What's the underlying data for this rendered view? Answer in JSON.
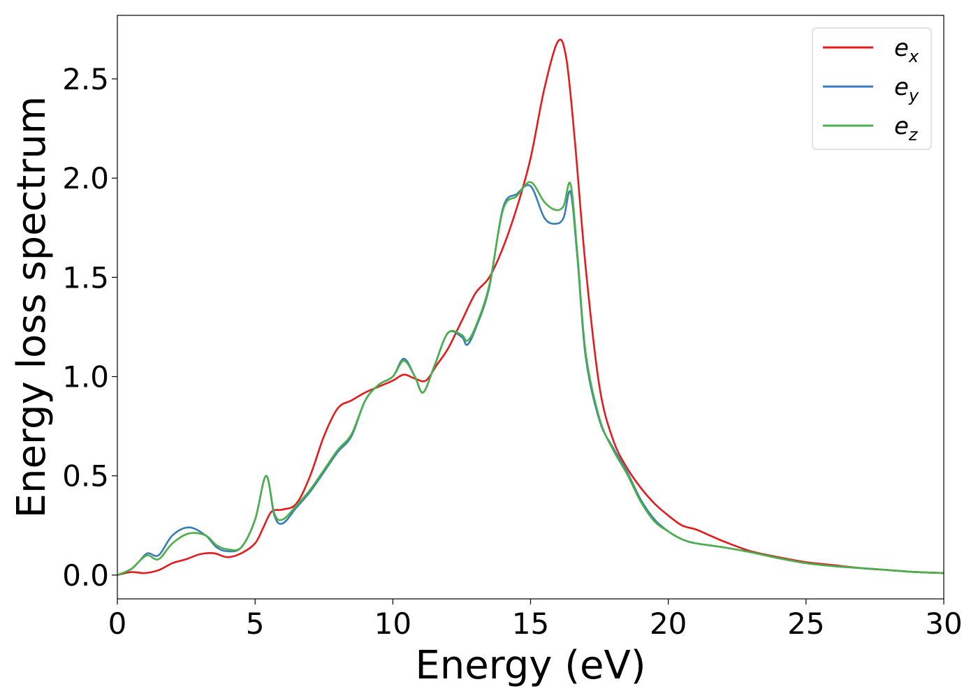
{
  "chart_data": {
    "type": "line",
    "title": "",
    "xlabel": "Energy (eV)",
    "ylabel": "Energy loss spectrum",
    "xlim": [
      0,
      30
    ],
    "ylim": [
      -0.12,
      2.82
    ],
    "xticks": [
      0,
      5,
      10,
      15,
      20,
      25,
      30
    ],
    "yticks": [
      0.0,
      0.5,
      1.0,
      1.5,
      2.0,
      2.5
    ],
    "xtick_labels": [
      "0",
      "5",
      "10",
      "15",
      "20",
      "25",
      "30"
    ],
    "ytick_labels": [
      "0.0",
      "0.5",
      "1.0",
      "1.5",
      "2.0",
      "2.5"
    ],
    "grid": false,
    "legend": "top-right",
    "series": [
      {
        "name": "e_x",
        "label_base": "e",
        "label_sub": "x",
        "color": "#e41a1c",
        "x": [
          0,
          0.5,
          1.0,
          1.5,
          2.0,
          2.5,
          3.0,
          3.5,
          4.0,
          4.5,
          5.0,
          5.3,
          5.6,
          6.0,
          6.5,
          7.0,
          7.5,
          8.0,
          8.5,
          9.0,
          9.5,
          10.0,
          10.4,
          10.8,
          11.2,
          11.6,
          12.0,
          12.5,
          13.0,
          13.5,
          14.0,
          14.5,
          15.0,
          15.5,
          16.0,
          16.3,
          16.6,
          17.0,
          17.5,
          18.0,
          18.5,
          19.0,
          19.5,
          20.0,
          20.5,
          21.0,
          21.5,
          22.0,
          23.0,
          24.0,
          25.0,
          26.0,
          27.0,
          28.0,
          29.0,
          30.0
        ],
        "y": [
          0.0,
          0.015,
          0.01,
          0.025,
          0.06,
          0.08,
          0.105,
          0.11,
          0.09,
          0.11,
          0.16,
          0.24,
          0.32,
          0.33,
          0.36,
          0.5,
          0.7,
          0.84,
          0.88,
          0.92,
          0.95,
          0.98,
          1.01,
          0.99,
          0.98,
          1.06,
          1.14,
          1.28,
          1.42,
          1.5,
          1.65,
          1.85,
          2.1,
          2.45,
          2.69,
          2.6,
          2.2,
          1.55,
          0.95,
          0.68,
          0.54,
          0.44,
          0.36,
          0.3,
          0.25,
          0.23,
          0.2,
          0.17,
          0.12,
          0.09,
          0.065,
          0.05,
          0.035,
          0.025,
          0.015,
          0.01
        ]
      },
      {
        "name": "e_y",
        "label_base": "e",
        "label_sub": "y",
        "color": "#377eb8",
        "x": [
          0,
          0.5,
          0.8,
          1.1,
          1.5,
          2.0,
          2.6,
          3.2,
          3.6,
          4.0,
          4.5,
          5.0,
          5.4,
          5.7,
          6.0,
          6.5,
          7.0,
          7.5,
          8.0,
          8.5,
          9.0,
          9.5,
          10.0,
          10.4,
          10.8,
          11.1,
          11.5,
          12.0,
          12.5,
          12.7,
          13.0,
          13.5,
          14.0,
          14.5,
          15.0,
          15.5,
          15.9,
          16.2,
          16.45,
          16.7,
          17.0,
          17.5,
          18.0,
          18.5,
          19.0,
          19.5,
          20.0,
          20.5,
          21.0,
          22.0,
          23.0,
          24.0,
          25.0,
          26.0,
          27.0,
          28.0,
          29.0,
          30.0
        ],
        "y": [
          0.0,
          0.03,
          0.07,
          0.11,
          0.1,
          0.2,
          0.24,
          0.2,
          0.14,
          0.12,
          0.14,
          0.28,
          0.5,
          0.3,
          0.26,
          0.34,
          0.42,
          0.52,
          0.62,
          0.7,
          0.88,
          0.96,
          1.0,
          1.09,
          1.0,
          0.92,
          1.05,
          1.22,
          1.2,
          1.16,
          1.24,
          1.45,
          1.85,
          1.92,
          1.96,
          1.8,
          1.77,
          1.8,
          1.93,
          1.6,
          1.1,
          0.78,
          0.64,
          0.52,
          0.38,
          0.28,
          0.22,
          0.18,
          0.16,
          0.14,
          0.115,
          0.085,
          0.06,
          0.045,
          0.035,
          0.025,
          0.015,
          0.01
        ]
      },
      {
        "name": "e_z",
        "label_base": "e",
        "label_sub": "z",
        "color": "#4daf4a",
        "x": [
          0,
          0.5,
          0.8,
          1.1,
          1.5,
          2.0,
          2.6,
          3.2,
          3.6,
          4.0,
          4.5,
          5.0,
          5.4,
          5.7,
          6.0,
          6.5,
          7.0,
          7.5,
          8.0,
          8.5,
          9.0,
          9.5,
          10.0,
          10.4,
          10.8,
          11.1,
          11.5,
          12.0,
          12.5,
          12.7,
          13.0,
          13.5,
          14.0,
          14.5,
          15.0,
          15.5,
          15.9,
          16.2,
          16.45,
          16.7,
          17.0,
          17.5,
          18.0,
          18.5,
          19.0,
          19.5,
          20.0,
          20.5,
          21.0,
          22.0,
          23.0,
          24.0,
          25.0,
          26.0,
          27.0,
          28.0,
          29.0,
          30.0
        ],
        "y": [
          0.0,
          0.03,
          0.07,
          0.1,
          0.08,
          0.16,
          0.21,
          0.2,
          0.15,
          0.13,
          0.14,
          0.28,
          0.5,
          0.31,
          0.28,
          0.35,
          0.43,
          0.53,
          0.63,
          0.71,
          0.88,
          0.96,
          1.0,
          1.08,
          1.0,
          0.92,
          1.05,
          1.22,
          1.21,
          1.18,
          1.25,
          1.46,
          1.84,
          1.91,
          1.98,
          1.88,
          1.84,
          1.86,
          1.97,
          1.62,
          1.12,
          0.79,
          0.63,
          0.51,
          0.37,
          0.27,
          0.22,
          0.18,
          0.16,
          0.14,
          0.115,
          0.085,
          0.06,
          0.045,
          0.035,
          0.025,
          0.015,
          0.01
        ]
      }
    ]
  }
}
